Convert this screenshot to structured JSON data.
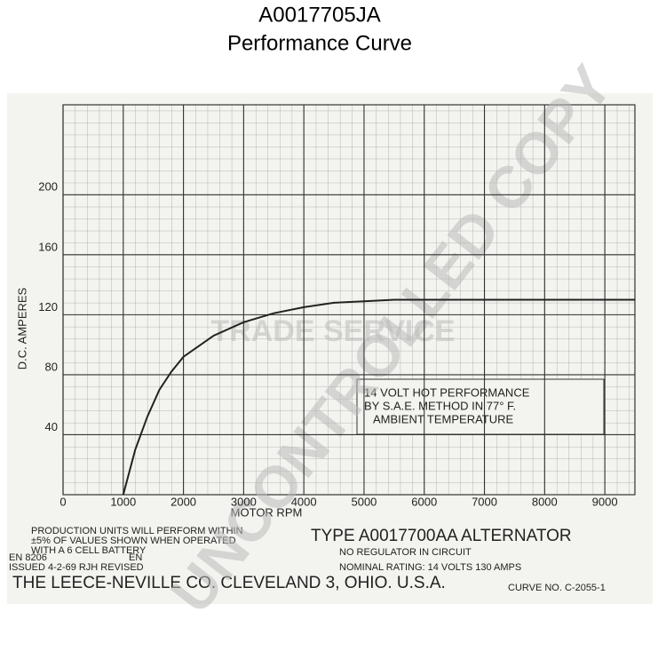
{
  "chart_data": {
    "type": "line",
    "title": "A0017705JA",
    "subtitle": "Performance Curve",
    "x_label": "MOTOR RPM",
    "y_label": "D.C. AMPERES",
    "x": [
      1000,
      1200,
      1400,
      1600,
      1800,
      2000,
      2500,
      3000,
      3500,
      4000,
      4500,
      5000,
      5500,
      6000,
      7000,
      8000,
      9500
    ],
    "values": [
      0,
      30,
      52,
      70,
      82,
      92,
      106,
      115,
      121,
      125,
      128,
      129,
      130,
      130,
      130,
      130,
      130
    ],
    "color": "#222222",
    "xlim": [
      0,
      9500
    ],
    "ylim": [
      0,
      260
    ],
    "xticks": [
      0,
      1000,
      2000,
      3000,
      4000,
      5000,
      6000,
      7000,
      8000,
      9000
    ],
    "yticks": [
      40,
      80,
      120,
      160,
      200
    ],
    "grid": true,
    "annotations": [
      "14 VOLT HOT PERFORMANCE",
      "BY S.A.E. METHOD IN 77° F.",
      "AMBIENT TEMPERATURE",
      "PRODUCTION UNITS WILL PERFORM WITHIN",
      "±5% OF VALUES SHOWN WHEN OPERATED",
      "WITH A 6 CELL BATTERY",
      "EN 8206",
      "ISSUED 4-2-69 RJH REVISED",
      "EN",
      "TYPE A0017700AA ALTERNATOR",
      "NO REGULATOR IN CIRCUIT",
      "NOMINAL RATING: 14 VOLTS 130 AMPS",
      "THE LEECE-NEVILLE CO. CLEVELAND 3, OHIO. U.S.A.",
      "CURVE NO. C-2055-1"
    ],
    "watermarks": [
      "TRADE SERVICE",
      "UNCONTROLLED COPY"
    ]
  }
}
